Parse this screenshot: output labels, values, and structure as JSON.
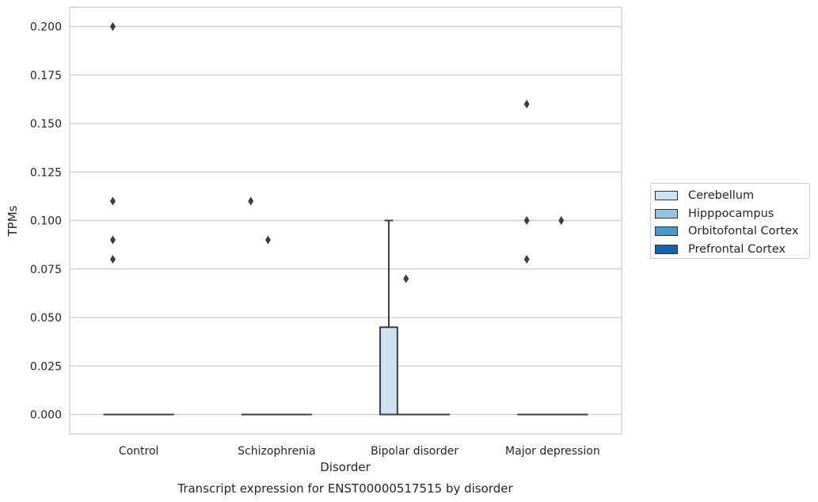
{
  "chart_data": {
    "type": "box",
    "caption": "Transcript expression for ENST00000517515 by disorder",
    "xlabel": "Disorder",
    "ylabel": "TPMs",
    "ylim": [
      -0.01,
      0.21
    ],
    "yticks": [
      0.0,
      0.025,
      0.05,
      0.075,
      0.1,
      0.125,
      0.15,
      0.175,
      0.2
    ],
    "ytick_labels": [
      "0.000",
      "0.025",
      "0.050",
      "0.075",
      "0.100",
      "0.125",
      "0.150",
      "0.175",
      "0.200"
    ],
    "categories": [
      "Control",
      "Schizophrenia",
      "Bipolar disorder",
      "Major depression"
    ],
    "grid": "horizontal",
    "legend_position": "right",
    "series": [
      {
        "name": "Cerebellum",
        "color": "#d0e1f2",
        "boxes": [
          {
            "category": "Control",
            "q1": 0.0,
            "median": 0.0,
            "q3": 0.0,
            "whisker_low": 0.0,
            "whisker_high": 0.0,
            "outliers": [
              0.08,
              0.2,
              0.11,
              0.09
            ]
          },
          {
            "category": "Schizophrenia",
            "q1": 0.0,
            "median": 0.0,
            "q3": 0.0,
            "whisker_low": 0.0,
            "whisker_high": 0.0,
            "outliers": [
              0.11
            ]
          },
          {
            "category": "Bipolar disorder",
            "q1": 0.0,
            "median": 0.0,
            "q3": 0.045,
            "whisker_low": 0.0,
            "whisker_high": 0.1,
            "outliers": []
          },
          {
            "category": "Major depression",
            "q1": 0.0,
            "median": 0.0,
            "q3": 0.0,
            "whisker_low": 0.0,
            "whisker_high": 0.0,
            "outliers": [
              0.16,
              0.1,
              0.08
            ]
          }
        ]
      },
      {
        "name": "Hipppocampus",
        "color": "#94c4df",
        "boxes": [
          {
            "category": "Control",
            "q1": 0.0,
            "median": 0.0,
            "q3": 0.0,
            "whisker_low": 0.0,
            "whisker_high": 0.0,
            "outliers": []
          },
          {
            "category": "Schizophrenia",
            "q1": 0.0,
            "median": 0.0,
            "q3": 0.0,
            "whisker_low": 0.0,
            "whisker_high": 0.0,
            "outliers": [
              0.09
            ]
          },
          {
            "category": "Bipolar disorder",
            "q1": 0.0,
            "median": 0.0,
            "q3": 0.0,
            "whisker_low": 0.0,
            "whisker_high": 0.0,
            "outliers": [
              0.07
            ]
          },
          {
            "category": "Major depression",
            "q1": 0.0,
            "median": 0.0,
            "q3": 0.0,
            "whisker_low": 0.0,
            "whisker_high": 0.0,
            "outliers": []
          }
        ]
      },
      {
        "name": "Orbitofontal Cortex",
        "color": "#4a98c9",
        "boxes": [
          {
            "category": "Control",
            "q1": 0.0,
            "median": 0.0,
            "q3": 0.0,
            "whisker_low": 0.0,
            "whisker_high": 0.0,
            "outliers": []
          },
          {
            "category": "Schizophrenia",
            "q1": 0.0,
            "median": 0.0,
            "q3": 0.0,
            "whisker_low": 0.0,
            "whisker_high": 0.0,
            "outliers": []
          },
          {
            "category": "Bipolar disorder",
            "q1": 0.0,
            "median": 0.0,
            "q3": 0.0,
            "whisker_low": 0.0,
            "whisker_high": 0.0,
            "outliers": []
          },
          {
            "category": "Major depression",
            "q1": 0.0,
            "median": 0.0,
            "q3": 0.0,
            "whisker_low": 0.0,
            "whisker_high": 0.0,
            "outliers": [
              0.1
            ]
          }
        ]
      },
      {
        "name": "Prefrontal Cortex",
        "color": "#1764ab",
        "boxes": [
          {
            "category": "Control",
            "q1": 0.0,
            "median": 0.0,
            "q3": 0.0,
            "whisker_low": 0.0,
            "whisker_high": 0.0,
            "outliers": []
          },
          {
            "category": "Schizophrenia",
            "q1": 0.0,
            "median": 0.0,
            "q3": 0.0,
            "whisker_low": 0.0,
            "whisker_high": 0.0,
            "outliers": []
          },
          {
            "category": "Bipolar disorder",
            "q1": 0.0,
            "median": 0.0,
            "q3": 0.0,
            "whisker_low": 0.0,
            "whisker_high": 0.0,
            "outliers": []
          },
          {
            "category": "Major depression",
            "q1": 0.0,
            "median": 0.0,
            "q3": 0.0,
            "whisker_low": 0.0,
            "whisker_high": 0.0,
            "outliers": []
          }
        ]
      }
    ]
  }
}
